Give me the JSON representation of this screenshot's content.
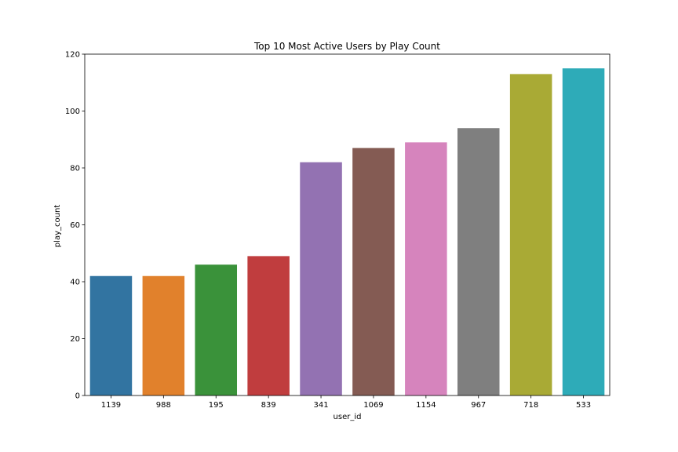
{
  "chart_data": {
    "type": "bar",
    "title": "Top 10 Most Active Users by Play Count",
    "xlabel": "user_id",
    "ylabel": "play_count",
    "categories": [
      "1139",
      "988",
      "195",
      "839",
      "341",
      "1069",
      "1154",
      "967",
      "718",
      "533"
    ],
    "values": [
      42,
      42,
      46,
      49,
      82,
      87,
      89,
      94,
      113,
      115
    ],
    "colors": [
      "#3274a1",
      "#e1812c",
      "#3a923a",
      "#c03d3e",
      "#9372b2",
      "#845b53",
      "#d684bd",
      "#7f7f7f",
      "#a9aa35",
      "#2eabb8"
    ],
    "ylim": [
      0,
      120
    ],
    "yticks": [
      0,
      20,
      40,
      60,
      80,
      100,
      120
    ],
    "grid": false,
    "legend": "none"
  }
}
